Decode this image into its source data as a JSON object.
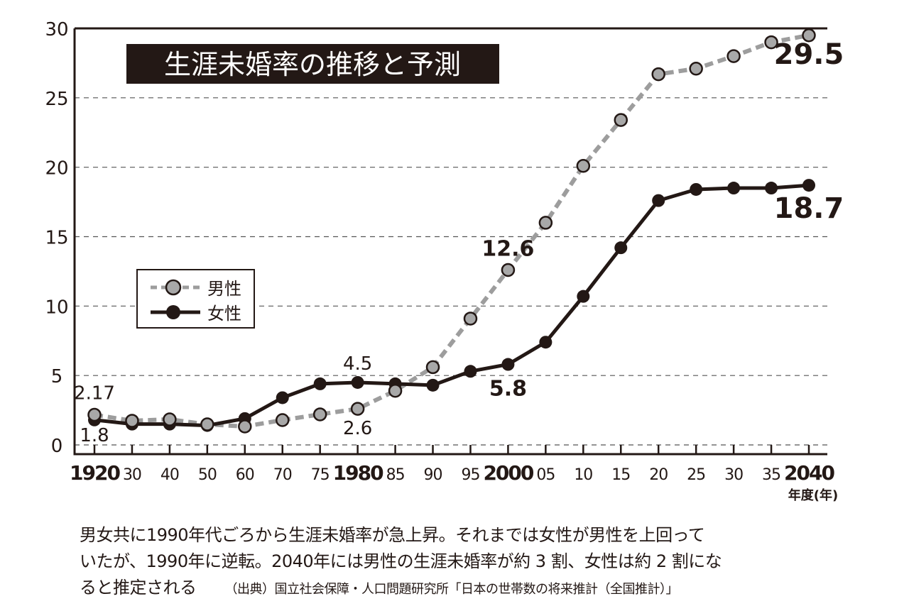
{
  "chart_data": {
    "type": "line",
    "title": "生涯未婚率の推移と予測",
    "x": [
      "1920",
      "30",
      "40",
      "50",
      "60",
      "70",
      "75",
      "1980",
      "85",
      "90",
      "95",
      "2000",
      "05",
      "10",
      "15",
      "20",
      "25",
      "30",
      "35",
      "2040"
    ],
    "x_emphasized": [
      "1920",
      "1980",
      "2000",
      "2040"
    ],
    "xlabel": "年度(年)",
    "ylabel": "",
    "ylim": [
      0,
      30
    ],
    "yticks": [
      0,
      5,
      10,
      15,
      20,
      25,
      30
    ],
    "grid": "horizontal dashed",
    "legend": "left-middle",
    "series": [
      {
        "name": "男性",
        "color": "#9d9d9d",
        "style": "dashed",
        "values": [
          2.17,
          1.74,
          1.84,
          1.48,
          1.33,
          1.79,
          2.2,
          2.6,
          3.9,
          5.6,
          9.1,
          12.6,
          16.0,
          20.1,
          23.4,
          26.7,
          27.1,
          28.0,
          29.0,
          29.5
        ]
      },
      {
        "name": "女性",
        "color": "#231815",
        "style": "solid",
        "values": [
          1.8,
          1.5,
          1.5,
          1.4,
          1.9,
          3.4,
          4.4,
          4.5,
          4.4,
          4.3,
          5.3,
          5.8,
          7.4,
          10.7,
          14.2,
          17.6,
          18.4,
          18.5,
          18.5,
          18.7
        ]
      }
    ],
    "annotations": [
      {
        "text": "2.17",
        "series": "男性",
        "x": "1920"
      },
      {
        "text": "1.8",
        "series": "女性",
        "x": "1920"
      },
      {
        "text": "4.5",
        "series": "女性",
        "x": "1980"
      },
      {
        "text": "2.6",
        "series": "男性",
        "x": "1980"
      },
      {
        "text": "12.6",
        "series": "男性",
        "x": "2000"
      },
      {
        "text": "5.8",
        "series": "女性",
        "x": "2000"
      },
      {
        "text": "29.5",
        "series": "男性",
        "x": "2040"
      },
      {
        "text": "18.7",
        "series": "女性",
        "x": "2040"
      }
    ]
  },
  "caption": {
    "lines": [
      "男女共に1990年代ごろから生涯未婚率が急上昇。それまでは女性が男性を上回って",
      "いたが、1990年に逆転。2040年には男性の生涯未婚率が約 3 割、女性は約 2 割にな",
      "ると推定される"
    ],
    "source": "（出典）国立社会保障・人口問題研究所「日本の世帯数の将来推計（全国推計）」"
  }
}
